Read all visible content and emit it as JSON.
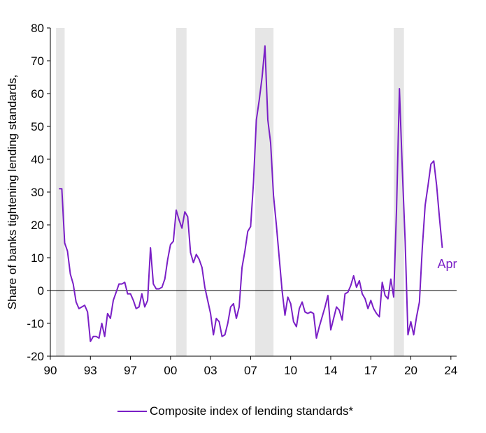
{
  "chart_data": {
    "type": "line",
    "title": "",
    "xlabel": "",
    "ylabel": "Share of banks tightening lending standards,",
    "xlim": [
      1990,
      2025.5
    ],
    "ylim": [
      -20,
      80
    ],
    "yticks": [
      -20,
      -10,
      0,
      10,
      20,
      30,
      40,
      50,
      60,
      70,
      80
    ],
    "xticks": [
      {
        "x": 1990,
        "label": "90"
      },
      {
        "x": 1993.5,
        "label": "93"
      },
      {
        "x": 1997,
        "label": "97"
      },
      {
        "x": 2000.5,
        "label": "00"
      },
      {
        "x": 2004,
        "label": "03"
      },
      {
        "x": 2007.5,
        "label": "07"
      },
      {
        "x": 2011,
        "label": "10"
      },
      {
        "x": 2014.5,
        "label": "14"
      },
      {
        "x": 2018,
        "label": "17"
      },
      {
        "x": 2021.5,
        "label": "20"
      },
      {
        "x": 2025,
        "label": "24"
      }
    ],
    "recessions": [
      [
        1990.5,
        1991.25
      ],
      [
        2001.0,
        2001.9
      ],
      [
        2007.9,
        2009.5
      ],
      [
        2020.0,
        2020.9
      ]
    ],
    "grid": false,
    "legend": "bottom",
    "series": [
      {
        "name": "Composite index of lending standards*",
        "color": "#7a1fc6",
        "points": [
          [
            1990.75,
            31
          ],
          [
            1991.0,
            31
          ],
          [
            1991.25,
            14.5
          ],
          [
            1991.5,
            12
          ],
          [
            1991.75,
            5
          ],
          [
            1992.0,
            2
          ],
          [
            1992.25,
            -3.5
          ],
          [
            1992.5,
            -5.5
          ],
          [
            1992.75,
            -5
          ],
          [
            1993.0,
            -4.5
          ],
          [
            1993.25,
            -6.5
          ],
          [
            1993.5,
            -15.5
          ],
          [
            1993.75,
            -14
          ],
          [
            1994.0,
            -14
          ],
          [
            1994.25,
            -14.5
          ],
          [
            1994.5,
            -10
          ],
          [
            1994.75,
            -14
          ],
          [
            1995.0,
            -7
          ],
          [
            1995.25,
            -8.5
          ],
          [
            1995.5,
            -3
          ],
          [
            1995.75,
            -0.5
          ],
          [
            1996.0,
            2
          ],
          [
            1996.25,
            2
          ],
          [
            1996.5,
            2.5
          ],
          [
            1996.75,
            -1
          ],
          [
            1997.0,
            -1
          ],
          [
            1997.25,
            -3
          ],
          [
            1997.5,
            -5.5
          ],
          [
            1997.75,
            -5
          ],
          [
            1998.0,
            -1
          ],
          [
            1998.25,
            -5
          ],
          [
            1998.5,
            -3
          ],
          [
            1998.75,
            13
          ],
          [
            1999.0,
            2
          ],
          [
            1999.25,
            0.5
          ],
          [
            1999.5,
            0.5
          ],
          [
            1999.75,
            1
          ],
          [
            2000.0,
            3.5
          ],
          [
            2000.25,
            9.5
          ],
          [
            2000.5,
            14
          ],
          [
            2000.75,
            15
          ],
          [
            2001.0,
            24.5
          ],
          [
            2001.25,
            21.5
          ],
          [
            2001.5,
            19
          ],
          [
            2001.75,
            24
          ],
          [
            2002.0,
            22.5
          ],
          [
            2002.25,
            11.5
          ],
          [
            2002.5,
            8.5
          ],
          [
            2002.75,
            11
          ],
          [
            2003.0,
            9.5
          ],
          [
            2003.25,
            7
          ],
          [
            2003.5,
            1
          ],
          [
            2003.75,
            -3
          ],
          [
            2004.0,
            -7
          ],
          [
            2004.25,
            -13.5
          ],
          [
            2004.5,
            -8.5
          ],
          [
            2004.75,
            -9.5
          ],
          [
            2005.0,
            -14
          ],
          [
            2005.25,
            -13.5
          ],
          [
            2005.5,
            -10
          ],
          [
            2005.75,
            -5
          ],
          [
            2006.0,
            -4
          ],
          [
            2006.25,
            -8.5
          ],
          [
            2006.5,
            -5
          ],
          [
            2006.75,
            7
          ],
          [
            2007.0,
            12
          ],
          [
            2007.25,
            18
          ],
          [
            2007.5,
            19.5
          ],
          [
            2007.75,
            33
          ],
          [
            2008.0,
            52
          ],
          [
            2008.25,
            58
          ],
          [
            2008.5,
            65
          ],
          [
            2008.75,
            74.5
          ],
          [
            2009.0,
            52
          ],
          [
            2009.25,
            45
          ],
          [
            2009.5,
            29
          ],
          [
            2009.75,
            20
          ],
          [
            2010.0,
            10
          ],
          [
            2010.25,
            0
          ],
          [
            2010.5,
            -7.5
          ],
          [
            2010.75,
            -2
          ],
          [
            2011.0,
            -4
          ],
          [
            2011.25,
            -9.5
          ],
          [
            2011.5,
            -11
          ],
          [
            2011.75,
            -5.5
          ],
          [
            2012.0,
            -3.5
          ],
          [
            2012.25,
            -6.5
          ],
          [
            2012.5,
            -7
          ],
          [
            2012.75,
            -6.5
          ],
          [
            2013.0,
            -7
          ],
          [
            2013.25,
            -14.5
          ],
          [
            2013.5,
            -11
          ],
          [
            2013.75,
            -8
          ],
          [
            2014.0,
            -5
          ],
          [
            2014.25,
            -1.5
          ],
          [
            2014.5,
            -12
          ],
          [
            2014.75,
            -8.5
          ],
          [
            2015.0,
            -5
          ],
          [
            2015.25,
            -6
          ],
          [
            2015.5,
            -9
          ],
          [
            2015.75,
            -1
          ],
          [
            2016.0,
            -0.5
          ],
          [
            2016.25,
            1.5
          ],
          [
            2016.5,
            4.5
          ],
          [
            2016.75,
            1
          ],
          [
            2017.0,
            3
          ],
          [
            2017.25,
            -1
          ],
          [
            2017.5,
            -2.5
          ],
          [
            2017.75,
            -5.5
          ],
          [
            2018.0,
            -3
          ],
          [
            2018.25,
            -5.5
          ],
          [
            2018.5,
            -7
          ],
          [
            2018.75,
            -8
          ],
          [
            2019.0,
            2.5
          ],
          [
            2019.25,
            -1.5
          ],
          [
            2019.5,
            -2.5
          ],
          [
            2019.75,
            3.5
          ],
          [
            2020.0,
            -2
          ],
          [
            2020.25,
            25
          ],
          [
            2020.5,
            61.5
          ],
          [
            2020.75,
            37
          ],
          [
            2021.0,
            15
          ],
          [
            2021.25,
            -13.5
          ],
          [
            2021.5,
            -9.5
          ],
          [
            2021.75,
            -13.5
          ],
          [
            2022.0,
            -8
          ],
          [
            2022.25,
            -3.5
          ],
          [
            2022.5,
            13
          ],
          [
            2022.75,
            26
          ],
          [
            2023.0,
            32
          ],
          [
            2023.25,
            38.5
          ],
          [
            2023.5,
            39.5
          ],
          [
            2023.75,
            32
          ],
          [
            2024.0,
            22
          ],
          [
            2024.25,
            13
          ]
        ]
      }
    ],
    "annotation": {
      "text": "Apr",
      "x": 2024.25,
      "y": 13
    }
  }
}
